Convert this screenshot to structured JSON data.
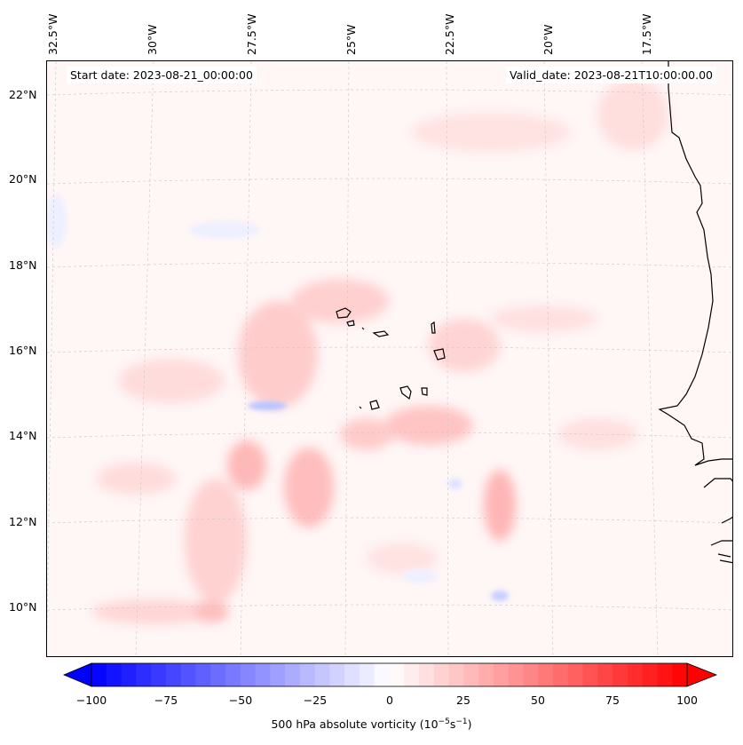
{
  "map": {
    "start_date": "Start date: 2023-08-21_00:00:00",
    "valid_date": "Valid_date: 2023-08-21T10:00:00.00",
    "lon_labels": [
      "32.5°W",
      "30°W",
      "27.5°W",
      "25°W",
      "22.5°W",
      "20°W",
      "17.5°W"
    ],
    "lat_labels": [
      "22°N",
      "20°N",
      "18°N",
      "16°N",
      "14°N",
      "12°N",
      "10°N"
    ],
    "region": "Cape Verde Islands and West African coast",
    "field": "500 hPa absolute vorticity"
  },
  "colorbar": {
    "ticks": [
      "−100",
      "−75",
      "−50",
      "−25",
      "0",
      "25",
      "50",
      "75",
      "100"
    ],
    "vmin": -100,
    "vmax": 100,
    "label_text": "500 hPa absolute vorticity (10",
    "label_exp1": "−5",
    "label_mid": "s",
    "label_exp2": "−1",
    "label_close": ")",
    "neg_color": "#0000ff",
    "mid_color": "#ffffff",
    "pos_color": "#ff0000"
  }
}
